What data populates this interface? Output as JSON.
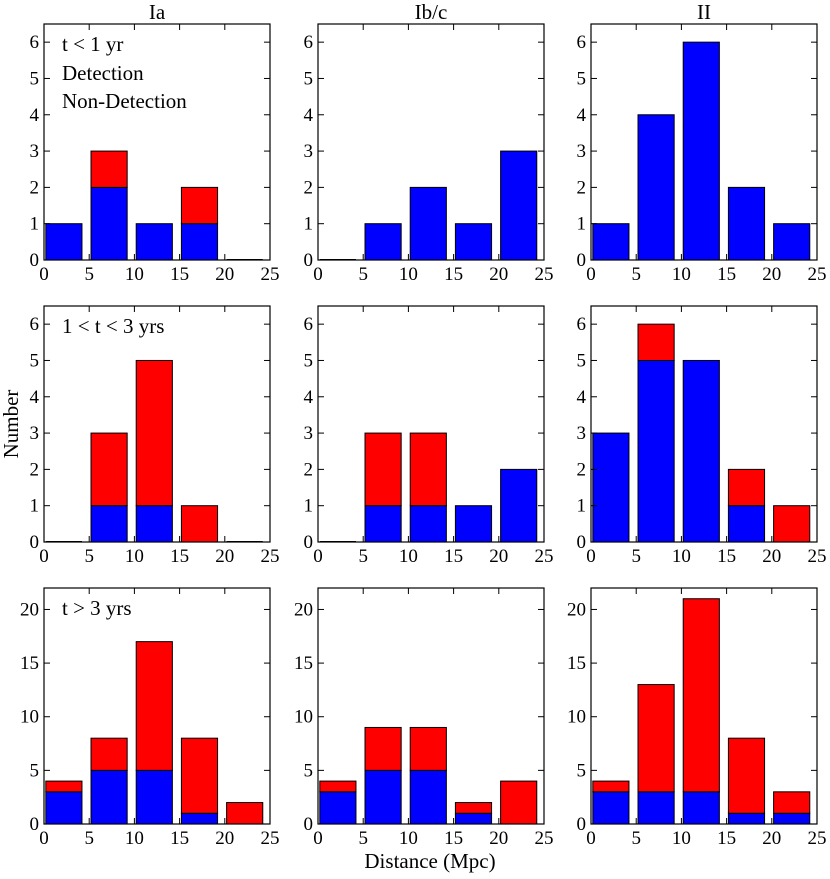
{
  "figure": {
    "xlabel": "Distance (Mpc)",
    "ylabel": "Number",
    "legend": {
      "detection": "Detection",
      "non_detection": "Non-Detection"
    }
  },
  "colors": {
    "detection": "#0000ff",
    "non_detection": "#ff0000"
  },
  "chart_data": [
    {
      "type": "bar",
      "stacked": true,
      "row": "t < 1 yr",
      "column": "Ia",
      "bins": [
        [
          0,
          5
        ],
        [
          5,
          10
        ],
        [
          10,
          15
        ],
        [
          15,
          20
        ],
        [
          20,
          25
        ]
      ],
      "series": [
        {
          "name": "Detection",
          "values": [
            1,
            2,
            1,
            1,
            0
          ]
        },
        {
          "name": "Non-Detection",
          "values": [
            0,
            1,
            0,
            1,
            0
          ]
        }
      ],
      "xlim": [
        0,
        25
      ],
      "ylim": [
        0,
        6.5
      ],
      "xticks": [
        0,
        5,
        10,
        15,
        20,
        25
      ],
      "yticks": [
        0,
        1,
        2,
        3,
        4,
        5,
        6
      ]
    },
    {
      "type": "bar",
      "stacked": true,
      "row": "t < 1 yr",
      "column": "Ib/c",
      "bins": [
        [
          0,
          5
        ],
        [
          5,
          10
        ],
        [
          10,
          15
        ],
        [
          15,
          20
        ],
        [
          20,
          25
        ]
      ],
      "series": [
        {
          "name": "Detection",
          "values": [
            0,
            1,
            2,
            1,
            3
          ]
        },
        {
          "name": "Non-Detection",
          "values": [
            0,
            0,
            0,
            0,
            0
          ]
        }
      ],
      "xlim": [
        0,
        25
      ],
      "ylim": [
        0,
        6.5
      ],
      "xticks": [
        0,
        5,
        10,
        15,
        20,
        25
      ],
      "yticks": [
        0,
        1,
        2,
        3,
        4,
        5,
        6
      ]
    },
    {
      "type": "bar",
      "stacked": true,
      "row": "t < 1 yr",
      "column": "II",
      "bins": [
        [
          0,
          5
        ],
        [
          5,
          10
        ],
        [
          10,
          15
        ],
        [
          15,
          20
        ],
        [
          20,
          25
        ]
      ],
      "series": [
        {
          "name": "Detection",
          "values": [
            1,
            4,
            6,
            2,
            1
          ]
        },
        {
          "name": "Non-Detection",
          "values": [
            0,
            0,
            0,
            0,
            0
          ]
        }
      ],
      "xlim": [
        0,
        25
      ],
      "ylim": [
        0,
        6.5
      ],
      "xticks": [
        0,
        5,
        10,
        15,
        20,
        25
      ],
      "yticks": [
        0,
        1,
        2,
        3,
        4,
        5,
        6
      ]
    },
    {
      "type": "bar",
      "stacked": true,
      "row": "1 < t < 3 yrs",
      "column": "Ia",
      "bins": [
        [
          0,
          5
        ],
        [
          5,
          10
        ],
        [
          10,
          15
        ],
        [
          15,
          20
        ],
        [
          20,
          25
        ]
      ],
      "series": [
        {
          "name": "Detection",
          "values": [
            0,
            1,
            1,
            0,
            0
          ]
        },
        {
          "name": "Non-Detection",
          "values": [
            0,
            2,
            4,
            1,
            0
          ]
        }
      ],
      "xlim": [
        0,
        25
      ],
      "ylim": [
        0,
        6.5
      ],
      "xticks": [
        0,
        5,
        10,
        15,
        20,
        25
      ],
      "yticks": [
        0,
        1,
        2,
        3,
        4,
        5,
        6
      ]
    },
    {
      "type": "bar",
      "stacked": true,
      "row": "1 < t < 3 yrs",
      "column": "Ib/c",
      "bins": [
        [
          0,
          5
        ],
        [
          5,
          10
        ],
        [
          10,
          15
        ],
        [
          15,
          20
        ],
        [
          20,
          25
        ]
      ],
      "series": [
        {
          "name": "Detection",
          "values": [
            0,
            1,
            1,
            1,
            2
          ]
        },
        {
          "name": "Non-Detection",
          "values": [
            0,
            2,
            2,
            0,
            0
          ]
        }
      ],
      "xlim": [
        0,
        25
      ],
      "ylim": [
        0,
        6.5
      ],
      "xticks": [
        0,
        5,
        10,
        15,
        20,
        25
      ],
      "yticks": [
        0,
        1,
        2,
        3,
        4,
        5,
        6
      ]
    },
    {
      "type": "bar",
      "stacked": true,
      "row": "1 < t < 3 yrs",
      "column": "II",
      "bins": [
        [
          0,
          5
        ],
        [
          5,
          10
        ],
        [
          10,
          15
        ],
        [
          15,
          20
        ],
        [
          20,
          25
        ]
      ],
      "series": [
        {
          "name": "Detection",
          "values": [
            3,
            5,
            5,
            1,
            0
          ]
        },
        {
          "name": "Non-Detection",
          "values": [
            0,
            1,
            0,
            1,
            1
          ]
        }
      ],
      "xlim": [
        0,
        25
      ],
      "ylim": [
        0,
        6.5
      ],
      "xticks": [
        0,
        5,
        10,
        15,
        20,
        25
      ],
      "yticks": [
        0,
        1,
        2,
        3,
        4,
        5,
        6
      ]
    },
    {
      "type": "bar",
      "stacked": true,
      "row": "t > 3 yrs",
      "column": "Ia",
      "bins": [
        [
          0,
          5
        ],
        [
          5,
          10
        ],
        [
          10,
          15
        ],
        [
          15,
          20
        ],
        [
          20,
          25
        ]
      ],
      "series": [
        {
          "name": "Detection",
          "values": [
            3,
            5,
            5,
            1,
            0
          ]
        },
        {
          "name": "Non-Detection",
          "values": [
            1,
            3,
            12,
            7,
            2
          ]
        }
      ],
      "xlim": [
        0,
        25
      ],
      "ylim": [
        0,
        22
      ],
      "xticks": [
        0,
        5,
        10,
        15,
        20,
        25
      ],
      "yticks": [
        0,
        5,
        10,
        15,
        20
      ]
    },
    {
      "type": "bar",
      "stacked": true,
      "row": "t > 3 yrs",
      "column": "Ib/c",
      "bins": [
        [
          0,
          5
        ],
        [
          5,
          10
        ],
        [
          10,
          15
        ],
        [
          15,
          20
        ],
        [
          20,
          25
        ]
      ],
      "series": [
        {
          "name": "Detection",
          "values": [
            3,
            5,
            5,
            1,
            0
          ]
        },
        {
          "name": "Non-Detection",
          "values": [
            1,
            4,
            4,
            1,
            4
          ]
        }
      ],
      "xlim": [
        0,
        25
      ],
      "ylim": [
        0,
        22
      ],
      "xticks": [
        0,
        5,
        10,
        15,
        20,
        25
      ],
      "yticks": [
        0,
        5,
        10,
        15,
        20
      ]
    },
    {
      "type": "bar",
      "stacked": true,
      "row": "t > 3 yrs",
      "column": "II",
      "bins": [
        [
          0,
          5
        ],
        [
          5,
          10
        ],
        [
          10,
          15
        ],
        [
          15,
          20
        ],
        [
          20,
          25
        ]
      ],
      "series": [
        {
          "name": "Detection",
          "values": [
            3,
            3,
            3,
            1,
            1
          ]
        },
        {
          "name": "Non-Detection",
          "values": [
            1,
            10,
            18,
            7,
            2
          ]
        }
      ],
      "xlim": [
        0,
        25
      ],
      "ylim": [
        0,
        22
      ],
      "xticks": [
        0,
        5,
        10,
        15,
        20,
        25
      ],
      "yticks": [
        0,
        5,
        10,
        15,
        20
      ]
    }
  ]
}
